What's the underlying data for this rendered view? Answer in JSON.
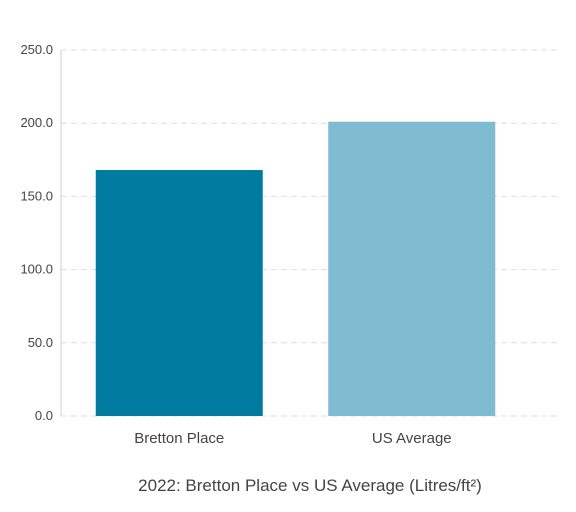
{
  "chart_data": {
    "type": "bar",
    "title": "2022: Bretton Place vs US Average (Litres/ft²)",
    "categories": [
      "Bretton Place",
      "US Average"
    ],
    "values": [
      168,
      201
    ],
    "colors": [
      "#007a9e",
      "#7fbcd1"
    ],
    "ylim": [
      0,
      250
    ],
    "yticks": [
      "0.0",
      "50.0",
      "100.0",
      "150.0",
      "200.0",
      "250.0"
    ],
    "grid": true,
    "legend": "none"
  }
}
